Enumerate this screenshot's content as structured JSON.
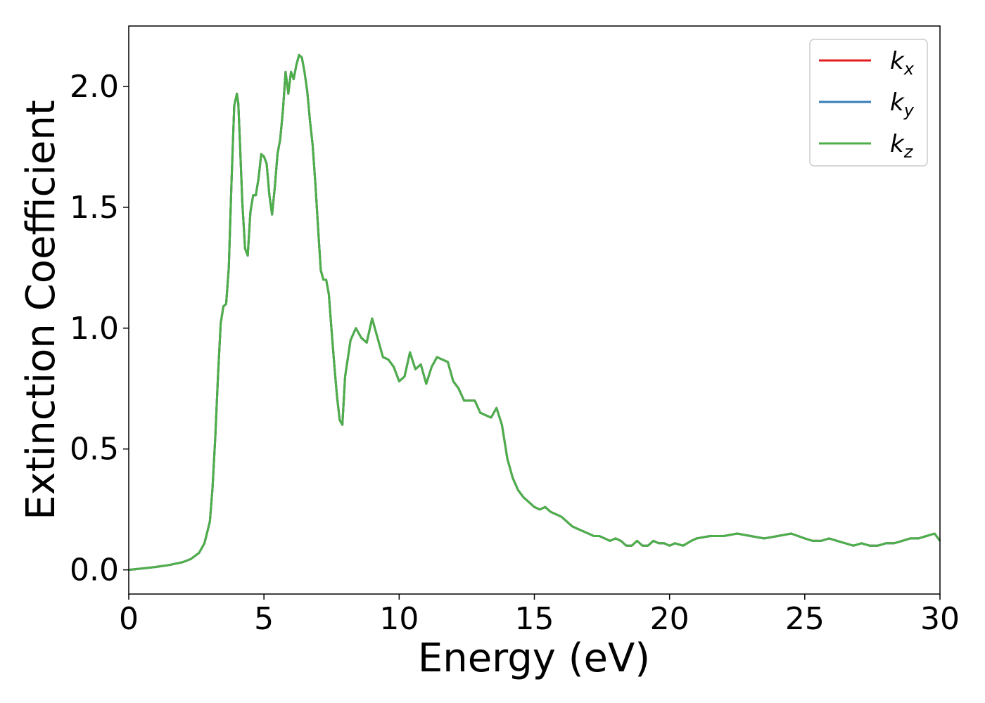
{
  "chart_data": {
    "type": "line",
    "title": "",
    "xlabel": "Energy (eV)",
    "ylabel": "Extinction Coefficient",
    "xlim": [
      0,
      30
    ],
    "ylim": [
      -0.1,
      2.25
    ],
    "xticks": [
      0,
      5,
      10,
      15,
      20,
      25,
      30
    ],
    "yticks": [
      0.0,
      0.5,
      1.0,
      1.5,
      2.0
    ],
    "xtick_labels": [
      "0",
      "5",
      "10",
      "15",
      "20",
      "25",
      "30"
    ],
    "ytick_labels": [
      "0.0",
      "0.5",
      "1.0",
      "1.5",
      "2.0"
    ],
    "grid": false,
    "legend_position": "top-right",
    "x": [
      0,
      0.5,
      1,
      1.5,
      2,
      2.3,
      2.6,
      2.8,
      3.0,
      3.1,
      3.2,
      3.3,
      3.4,
      3.5,
      3.6,
      3.7,
      3.8,
      3.9,
      4.0,
      4.05,
      4.1,
      4.2,
      4.3,
      4.4,
      4.5,
      4.6,
      4.7,
      4.8,
      4.9,
      5.0,
      5.1,
      5.2,
      5.3,
      5.4,
      5.5,
      5.6,
      5.7,
      5.8,
      5.9,
      6.0,
      6.1,
      6.2,
      6.3,
      6.4,
      6.5,
      6.6,
      6.7,
      6.8,
      6.9,
      7.0,
      7.1,
      7.2,
      7.3,
      7.4,
      7.5,
      7.6,
      7.7,
      7.8,
      7.9,
      8.0,
      8.2,
      8.4,
      8.6,
      8.8,
      9.0,
      9.2,
      9.4,
      9.6,
      9.8,
      10.0,
      10.2,
      10.4,
      10.6,
      10.8,
      11.0,
      11.2,
      11.4,
      11.6,
      11.8,
      12.0,
      12.2,
      12.4,
      12.6,
      12.8,
      13.0,
      13.2,
      13.4,
      13.6,
      13.8,
      14.0,
      14.2,
      14.4,
      14.6,
      14.8,
      15.0,
      15.2,
      15.4,
      15.6,
      15.8,
      16.0,
      16.2,
      16.4,
      16.6,
      16.8,
      17.0,
      17.2,
      17.4,
      17.6,
      17.8,
      18.0,
      18.2,
      18.4,
      18.6,
      18.8,
      19.0,
      19.2,
      19.4,
      19.6,
      19.8,
      20.0,
      20.2,
      20.5,
      20.8,
      21.0,
      21.5,
      22.0,
      22.5,
      23.0,
      23.5,
      24.0,
      24.5,
      25.0,
      25.3,
      25.6,
      25.9,
      26.2,
      26.5,
      26.8,
      27.1,
      27.4,
      27.7,
      28.0,
      28.3,
      28.6,
      28.9,
      29.2,
      29.5,
      29.8,
      30.0
    ],
    "y": [
      0.0,
      0.006,
      0.012,
      0.02,
      0.032,
      0.045,
      0.07,
      0.11,
      0.2,
      0.34,
      0.55,
      0.8,
      1.02,
      1.09,
      1.1,
      1.25,
      1.6,
      1.92,
      1.97,
      1.93,
      1.8,
      1.52,
      1.33,
      1.3,
      1.48,
      1.55,
      1.55,
      1.62,
      1.72,
      1.71,
      1.68,
      1.55,
      1.47,
      1.58,
      1.72,
      1.78,
      1.9,
      2.06,
      1.97,
      2.06,
      2.03,
      2.09,
      2.13,
      2.12,
      2.06,
      1.98,
      1.86,
      1.76,
      1.6,
      1.42,
      1.24,
      1.2,
      1.2,
      1.14,
      0.99,
      0.85,
      0.72,
      0.62,
      0.6,
      0.8,
      0.95,
      1.0,
      0.96,
      0.94,
      1.04,
      0.96,
      0.88,
      0.87,
      0.84,
      0.78,
      0.8,
      0.9,
      0.83,
      0.85,
      0.77,
      0.84,
      0.88,
      0.87,
      0.86,
      0.78,
      0.75,
      0.7,
      0.7,
      0.7,
      0.65,
      0.64,
      0.63,
      0.67,
      0.6,
      0.46,
      0.38,
      0.33,
      0.3,
      0.28,
      0.26,
      0.25,
      0.26,
      0.24,
      0.23,
      0.22,
      0.2,
      0.18,
      0.17,
      0.16,
      0.15,
      0.14,
      0.14,
      0.13,
      0.12,
      0.13,
      0.12,
      0.1,
      0.1,
      0.12,
      0.1,
      0.1,
      0.12,
      0.11,
      0.11,
      0.1,
      0.11,
      0.1,
      0.12,
      0.13,
      0.14,
      0.14,
      0.15,
      0.14,
      0.13,
      0.14,
      0.15,
      0.13,
      0.12,
      0.12,
      0.13,
      0.12,
      0.11,
      0.1,
      0.11,
      0.1,
      0.1,
      0.11,
      0.11,
      0.12,
      0.13,
      0.13,
      0.14,
      0.15,
      0.12
    ],
    "series": [
      {
        "name": "k",
        "subscript": "x",
        "color": "#e41a1c"
      },
      {
        "name": "k",
        "subscript": "y",
        "color": "#377eb8"
      },
      {
        "name": "k",
        "subscript": "z",
        "color": "#4daf4a"
      }
    ]
  }
}
